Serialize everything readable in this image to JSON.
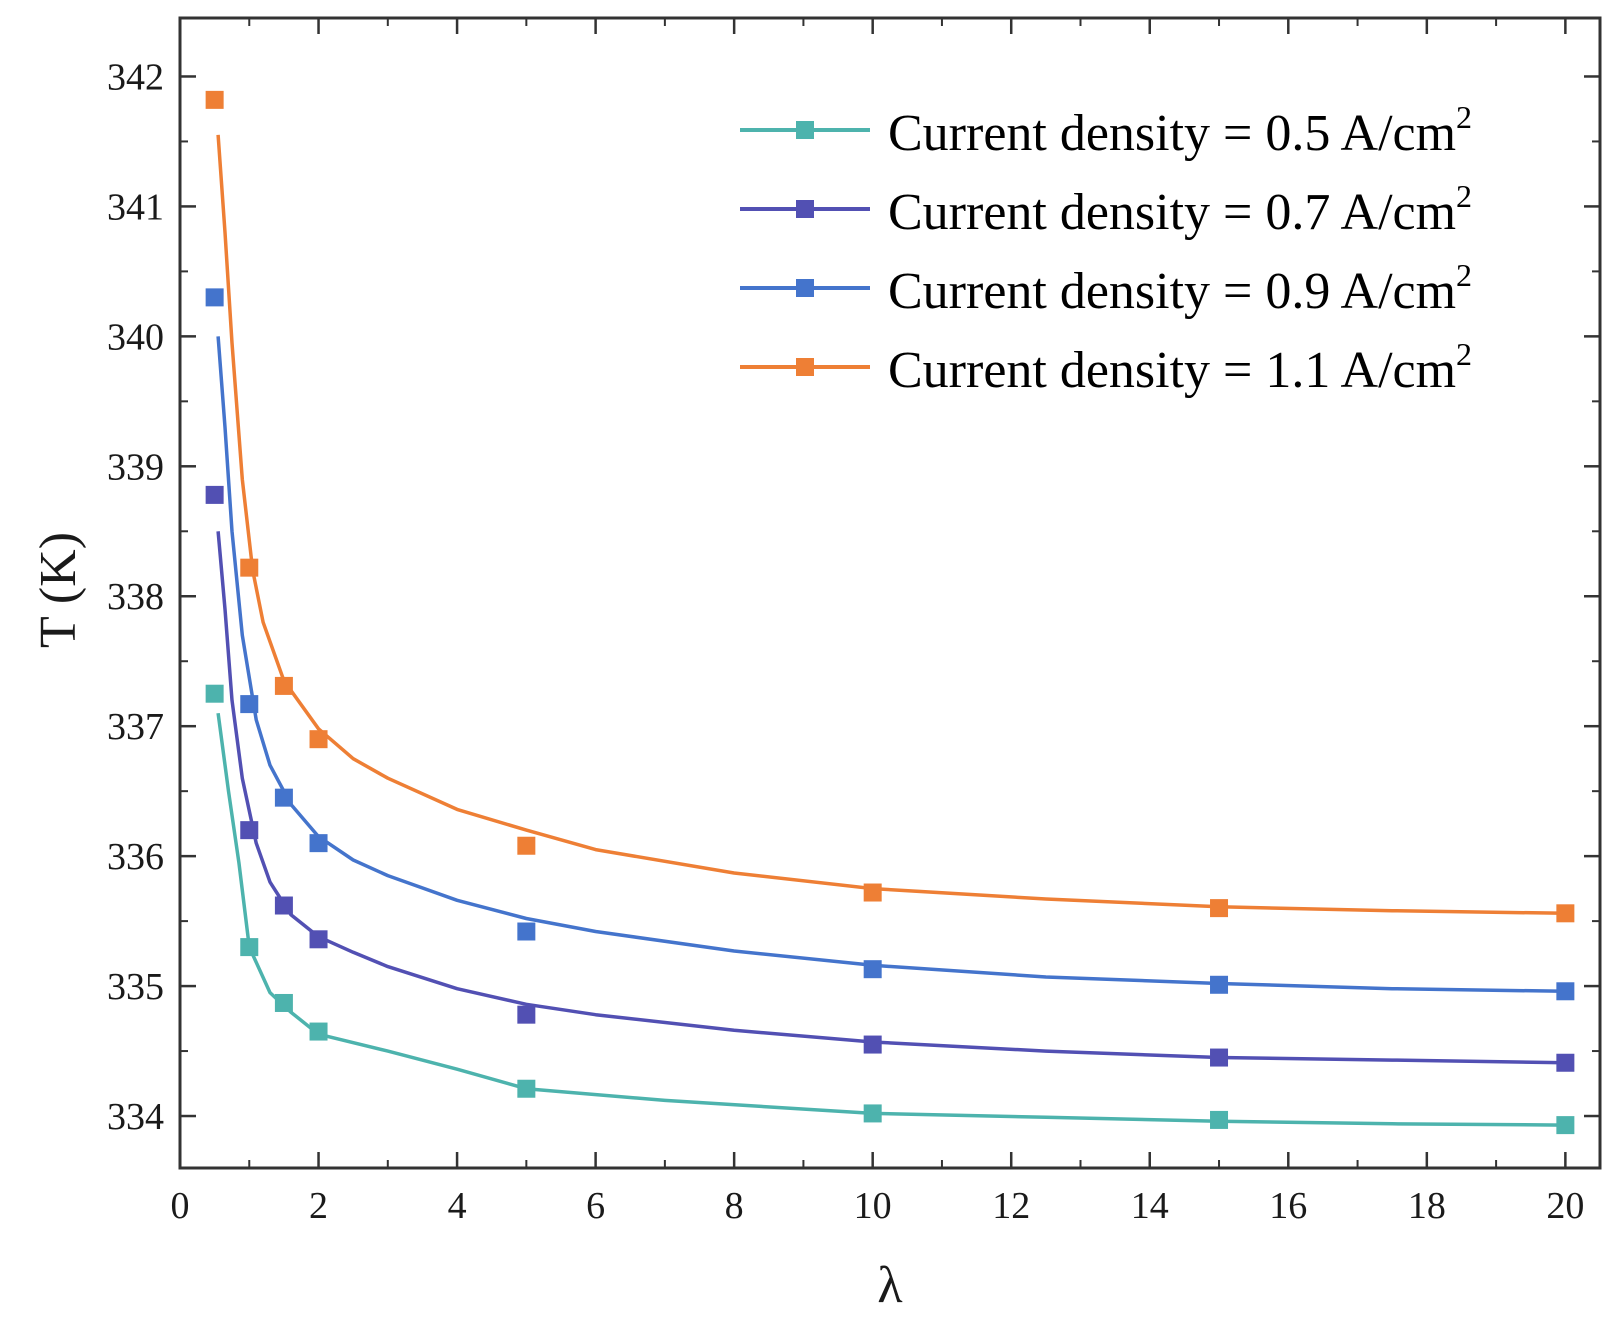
{
  "chart_data": {
    "type": "line",
    "title": "",
    "xlabel": "λ",
    "ylabel": "T (K)",
    "xlim": [
      0,
      20.5
    ],
    "ylim": [
      333.6,
      342.45
    ],
    "xticks": [
      0,
      2,
      4,
      6,
      8,
      10,
      12,
      14,
      16,
      18,
      20
    ],
    "yticks": [
      334,
      335,
      336,
      337,
      338,
      339,
      340,
      341,
      342
    ],
    "x": [
      0.5,
      1,
      1.5,
      2,
      5,
      10,
      15,
      20
    ],
    "legend_position": "top-right",
    "grid": false,
    "series": [
      {
        "name": "Current density = 0.5 A/cm",
        "superscript": "2",
        "color": "#4db3ad",
        "values": [
          337.25,
          335.3,
          334.87,
          334.65,
          334.21,
          334.02,
          333.97,
          333.93
        ],
        "fit": [
          [
            0.55,
            337.1
          ],
          [
            0.7,
            336.5
          ],
          [
            0.85,
            335.95
          ],
          [
            1.0,
            335.3
          ],
          [
            1.3,
            334.95
          ],
          [
            1.6,
            334.8
          ],
          [
            2.0,
            334.63
          ],
          [
            3.0,
            334.5
          ],
          [
            4.0,
            334.36
          ],
          [
            5.0,
            334.21
          ],
          [
            7.0,
            334.12
          ],
          [
            10.0,
            334.02
          ],
          [
            12.5,
            333.99
          ],
          [
            15.0,
            333.96
          ],
          [
            17.5,
            333.94
          ],
          [
            20.0,
            333.93
          ]
        ]
      },
      {
        "name": "Current density = 0.7 A/cm",
        "superscript": "2",
        "color": "#5250b3",
        "values": [
          338.78,
          336.2,
          335.62,
          335.36,
          334.78,
          334.55,
          334.45,
          334.41
        ],
        "fit": [
          [
            0.55,
            338.5
          ],
          [
            0.65,
            337.9
          ],
          [
            0.75,
            337.2
          ],
          [
            0.9,
            336.6
          ],
          [
            1.1,
            336.1
          ],
          [
            1.3,
            335.8
          ],
          [
            1.6,
            335.55
          ],
          [
            2.0,
            335.38
          ],
          [
            2.5,
            335.26
          ],
          [
            3.0,
            335.15
          ],
          [
            4.0,
            334.98
          ],
          [
            5.0,
            334.86
          ],
          [
            6.0,
            334.78
          ],
          [
            8.0,
            334.66
          ],
          [
            10.0,
            334.57
          ],
          [
            12.5,
            334.5
          ],
          [
            15.0,
            334.45
          ],
          [
            17.5,
            334.43
          ],
          [
            20.0,
            334.41
          ]
        ]
      },
      {
        "name": "Current density = 0.9 A/cm",
        "superscript": "2",
        "color": "#4474cc",
        "values": [
          340.3,
          337.17,
          336.45,
          336.1,
          335.42,
          335.13,
          335.01,
          334.96
        ],
        "fit": [
          [
            0.55,
            340.0
          ],
          [
            0.65,
            339.3
          ],
          [
            0.75,
            338.5
          ],
          [
            0.9,
            337.7
          ],
          [
            1.1,
            337.05
          ],
          [
            1.3,
            336.7
          ],
          [
            1.6,
            336.4
          ],
          [
            2.0,
            336.15
          ],
          [
            2.5,
            335.97
          ],
          [
            3.0,
            335.85
          ],
          [
            4.0,
            335.66
          ],
          [
            5.0,
            335.52
          ],
          [
            6.0,
            335.42
          ],
          [
            8.0,
            335.27
          ],
          [
            10.0,
            335.16
          ],
          [
            12.5,
            335.07
          ],
          [
            15.0,
            335.02
          ],
          [
            17.5,
            334.98
          ],
          [
            20.0,
            334.96
          ]
        ]
      },
      {
        "name": "Current density = 1.1 A/cm",
        "superscript": "2",
        "color": "#ee7f35",
        "values": [
          341.82,
          338.22,
          337.31,
          336.9,
          336.08,
          335.72,
          335.6,
          335.56
        ],
        "fit": [
          [
            0.55,
            341.55
          ],
          [
            0.65,
            340.8
          ],
          [
            0.75,
            339.95
          ],
          [
            0.9,
            338.9
          ],
          [
            1.05,
            338.2
          ],
          [
            1.2,
            337.8
          ],
          [
            1.5,
            337.35
          ],
          [
            2.0,
            336.98
          ],
          [
            2.5,
            336.75
          ],
          [
            3.0,
            336.6
          ],
          [
            4.0,
            336.36
          ],
          [
            5.0,
            336.2
          ],
          [
            6.0,
            336.05
          ],
          [
            8.0,
            335.87
          ],
          [
            10.0,
            335.75
          ],
          [
            12.5,
            335.67
          ],
          [
            15.0,
            335.61
          ],
          [
            17.5,
            335.58
          ],
          [
            20.0,
            335.56
          ]
        ]
      }
    ]
  }
}
